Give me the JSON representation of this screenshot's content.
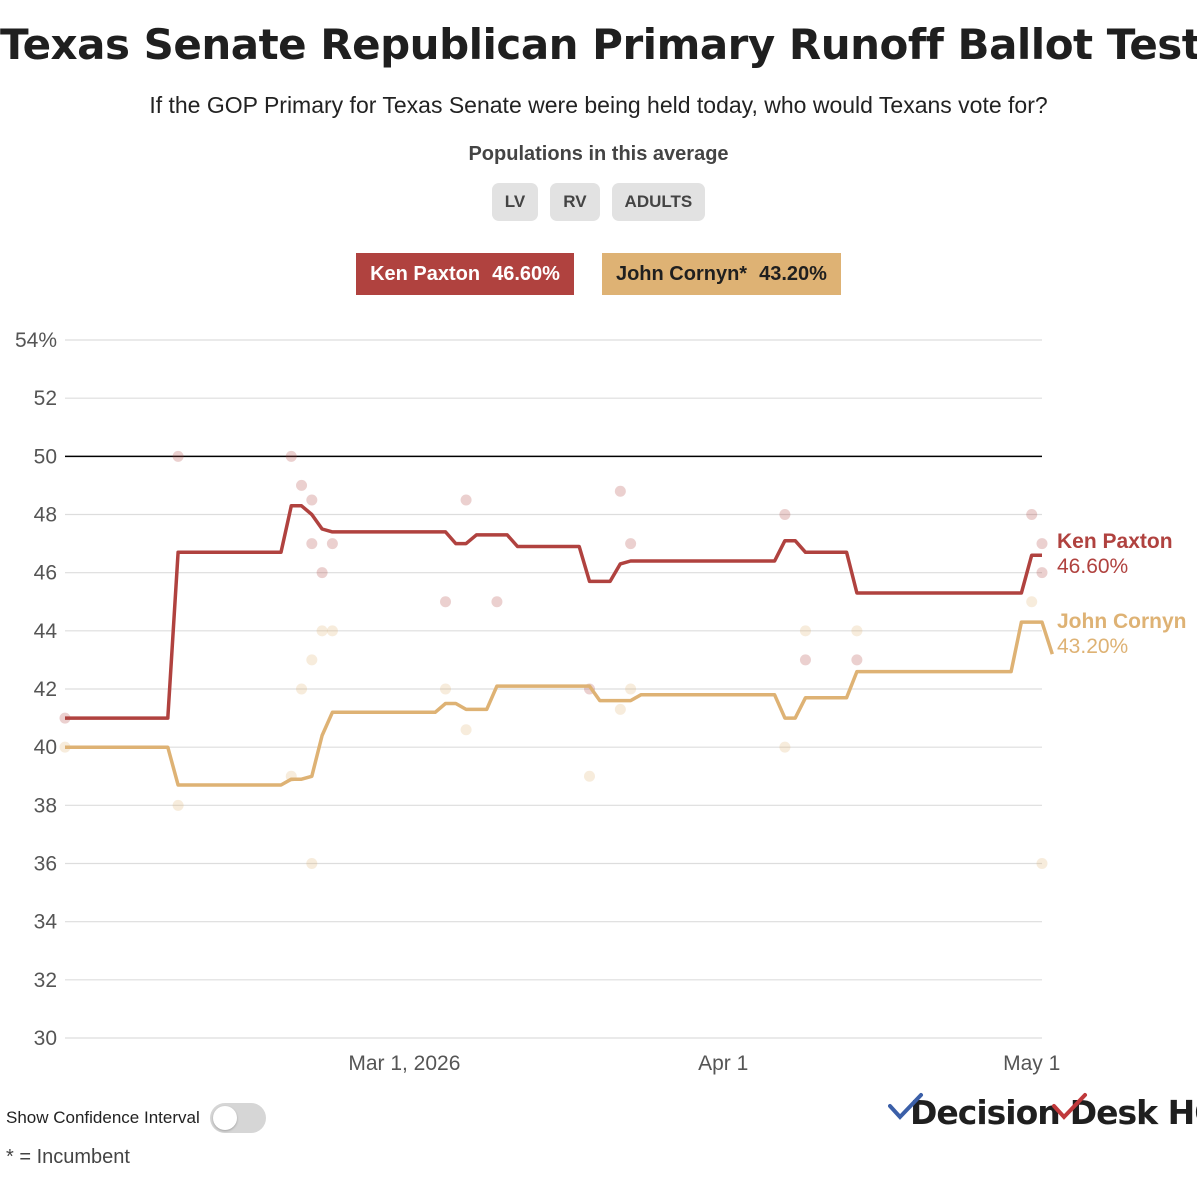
{
  "header": {
    "title": "Texas Senate Republican Primary Runoff Ballot Test",
    "subtitle": "If the GOP Primary for Texas Senate were being held today, who would Texans vote for?",
    "populations_label": "Populations in this average",
    "populations": [
      "LV",
      "RV",
      "ADULTS"
    ]
  },
  "legend": {
    "paxton": {
      "name": "Ken Paxton",
      "value": "46.60%"
    },
    "cornyn": {
      "name": "John Cornyn*",
      "value": "43.20%"
    }
  },
  "controls": {
    "confidence_interval_label": "Show Confidence Interval",
    "confidence_interval_on": false
  },
  "footnote": "* = Incumbent",
  "logo": {
    "text": "Decision Desk HQ",
    "part1": "Decision ",
    "part2": "Desk HQ"
  },
  "colors": {
    "paxton": "#b0423f",
    "cornyn": "#deb274",
    "grid": "#dddddd",
    "threshold": "#000000"
  },
  "chart_data": {
    "type": "line",
    "title": "Texas Senate Republican Primary Runoff Ballot Test",
    "xlabel": "",
    "ylabel": "",
    "ylim": [
      30,
      54
    ],
    "y_ticks": [
      "54%",
      "52",
      "50",
      "48",
      "46",
      "44",
      "42",
      "40",
      "38",
      "36",
      "34",
      "32",
      "30"
    ],
    "y_tick_values": [
      54,
      52,
      50,
      48,
      46,
      44,
      42,
      40,
      38,
      36,
      34,
      32,
      30
    ],
    "x_ticks": [
      {
        "label": "Mar 1, 2026",
        "date": "2026-03-01"
      },
      {
        "label": "Apr 1",
        "date": "2026-04-01"
      },
      {
        "label": "May 1",
        "date": "2026-05-01"
      }
    ],
    "xlim": [
      "2026-01-27",
      "2026-05-02"
    ],
    "reference_line": 50,
    "grid": true,
    "series": [
      {
        "name": "Ken Paxton",
        "end_label": "46.60%",
        "points": [
          [
            "2026-01-27",
            41.0
          ],
          [
            "2026-02-06",
            41.0
          ],
          [
            "2026-02-07",
            46.7
          ],
          [
            "2026-02-17",
            46.7
          ],
          [
            "2026-02-18",
            48.3
          ],
          [
            "2026-02-19",
            48.3
          ],
          [
            "2026-02-20",
            48.0
          ],
          [
            "2026-02-21",
            47.5
          ],
          [
            "2026-02-22",
            47.4
          ],
          [
            "2026-03-05",
            47.4
          ],
          [
            "2026-03-06",
            47.0
          ],
          [
            "2026-03-07",
            47.0
          ],
          [
            "2026-03-08",
            47.3
          ],
          [
            "2026-03-11",
            47.3
          ],
          [
            "2026-03-12",
            46.9
          ],
          [
            "2026-03-18",
            46.9
          ],
          [
            "2026-03-19",
            45.7
          ],
          [
            "2026-03-21",
            45.7
          ],
          [
            "2026-03-22",
            46.3
          ],
          [
            "2026-03-23",
            46.4
          ],
          [
            "2026-04-06",
            46.4
          ],
          [
            "2026-04-07",
            47.1
          ],
          [
            "2026-04-08",
            47.1
          ],
          [
            "2026-04-09",
            46.7
          ],
          [
            "2026-04-13",
            46.7
          ],
          [
            "2026-04-14",
            45.3
          ],
          [
            "2026-04-30",
            45.3
          ],
          [
            "2026-05-01",
            46.6
          ],
          [
            "2026-05-02",
            46.6
          ]
        ]
      },
      {
        "name": "John Cornyn*",
        "end_label": "43.20%",
        "points": [
          [
            "2026-01-27",
            40.0
          ],
          [
            "2026-02-06",
            40.0
          ],
          [
            "2026-02-07",
            38.7
          ],
          [
            "2026-02-17",
            38.7
          ],
          [
            "2026-02-18",
            38.9
          ],
          [
            "2026-02-19",
            38.9
          ],
          [
            "2026-02-20",
            39.0
          ],
          [
            "2026-02-21",
            40.4
          ],
          [
            "2026-02-22",
            41.2
          ],
          [
            "2026-03-04",
            41.2
          ],
          [
            "2026-03-05",
            41.5
          ],
          [
            "2026-03-06",
            41.5
          ],
          [
            "2026-03-07",
            41.3
          ],
          [
            "2026-03-09",
            41.3
          ],
          [
            "2026-03-10",
            42.1
          ],
          [
            "2026-03-19",
            42.1
          ],
          [
            "2026-03-20",
            41.6
          ],
          [
            "2026-03-23",
            41.6
          ],
          [
            "2026-03-24",
            41.8
          ],
          [
            "2026-04-06",
            41.8
          ],
          [
            "2026-04-07",
            41.0
          ],
          [
            "2026-04-08",
            41.0
          ],
          [
            "2026-04-09",
            41.7
          ],
          [
            "2026-04-13",
            41.7
          ],
          [
            "2026-04-14",
            42.6
          ],
          [
            "2026-04-29",
            42.6
          ],
          [
            "2026-04-30",
            44.3
          ],
          [
            "2026-05-02",
            44.3
          ],
          [
            "2026-05-03",
            43.2
          ]
        ]
      }
    ],
    "polls": {
      "Ken Paxton": [
        [
          "2026-01-27",
          41
        ],
        [
          "2026-02-07",
          50
        ],
        [
          "2026-02-18",
          50
        ],
        [
          "2026-02-19",
          49
        ],
        [
          "2026-02-20",
          48.5
        ],
        [
          "2026-02-20",
          47
        ],
        [
          "2026-02-21",
          46
        ],
        [
          "2026-02-22",
          47
        ],
        [
          "2026-03-05",
          45
        ],
        [
          "2026-03-07",
          48.5
        ],
        [
          "2026-03-10",
          45
        ],
        [
          "2026-03-19",
          42
        ],
        [
          "2026-03-22",
          48.8
        ],
        [
          "2026-03-23",
          47
        ],
        [
          "2026-04-07",
          48
        ],
        [
          "2026-04-09",
          43
        ],
        [
          "2026-04-14",
          43
        ],
        [
          "2026-05-01",
          48
        ],
        [
          "2026-05-02",
          47
        ],
        [
          "2026-05-02",
          46
        ]
      ],
      "John Cornyn*": [
        [
          "2026-01-27",
          40
        ],
        [
          "2026-02-07",
          38
        ],
        [
          "2026-02-18",
          39
        ],
        [
          "2026-02-19",
          42
        ],
        [
          "2026-02-20",
          43
        ],
        [
          "2026-02-20",
          36
        ],
        [
          "2026-02-21",
          44
        ],
        [
          "2026-02-22",
          44
        ],
        [
          "2026-03-05",
          42
        ],
        [
          "2026-03-07",
          40.6
        ],
        [
          "2026-03-19",
          39
        ],
        [
          "2026-03-22",
          41.3
        ],
        [
          "2026-03-23",
          42
        ],
        [
          "2026-04-07",
          40
        ],
        [
          "2026-04-09",
          44
        ],
        [
          "2026-04-14",
          44
        ],
        [
          "2026-05-01",
          45
        ],
        [
          "2026-05-02",
          36
        ]
      ]
    }
  }
}
